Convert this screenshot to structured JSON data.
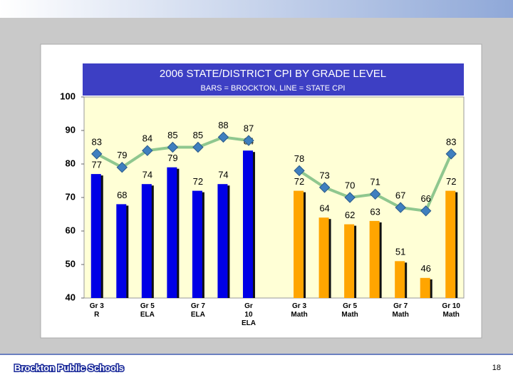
{
  "chart_data": {
    "type": "bar_line",
    "title": "2006 STATE/DISTRICT CPI BY GRADE LEVEL",
    "subtitle": "BARS = BROCKTON, LINE = STATE CPI",
    "categories": [
      "Gr 3\nR",
      null,
      "Gr 5\nELA",
      null,
      "Gr 7\nELA",
      null,
      "Gr\n10\nELA",
      null,
      "Gr 3\nMath",
      null,
      "Gr 5\nMath",
      null,
      "Gr 7\nMath",
      null,
      "Gr 10\nMath"
    ],
    "series": [
      {
        "type": "bar",
        "colors": [
          "#0000e6",
          "#0000e6",
          "#0000e6",
          "#0000e6",
          "#0000e6",
          "#0000e6",
          "#0000e6",
          null,
          "#ffa500",
          "#ffa500",
          "#ffa500",
          "#ffa500",
          "#ffa500",
          "#ffa500",
          "#ffa500"
        ],
        "values": [
          77,
          68,
          74,
          79,
          72,
          74,
          84,
          null,
          72,
          64,
          62,
          63,
          51,
          46,
          72
        ]
      },
      {
        "type": "line",
        "color": "#8fc78f",
        "marker_color": "#3f7fbf",
        "values": [
          83,
          79,
          84,
          85,
          85,
          88,
          87,
          null,
          78,
          73,
          70,
          71,
          67,
          66,
          83
        ]
      }
    ],
    "ylim": [
      40,
      100
    ],
    "yticks": [
      40,
      50,
      60,
      70,
      80,
      90,
      100
    ],
    "grid": false
  },
  "footer": {
    "logo": "Brockton Public Schools",
    "page_number": "18"
  }
}
